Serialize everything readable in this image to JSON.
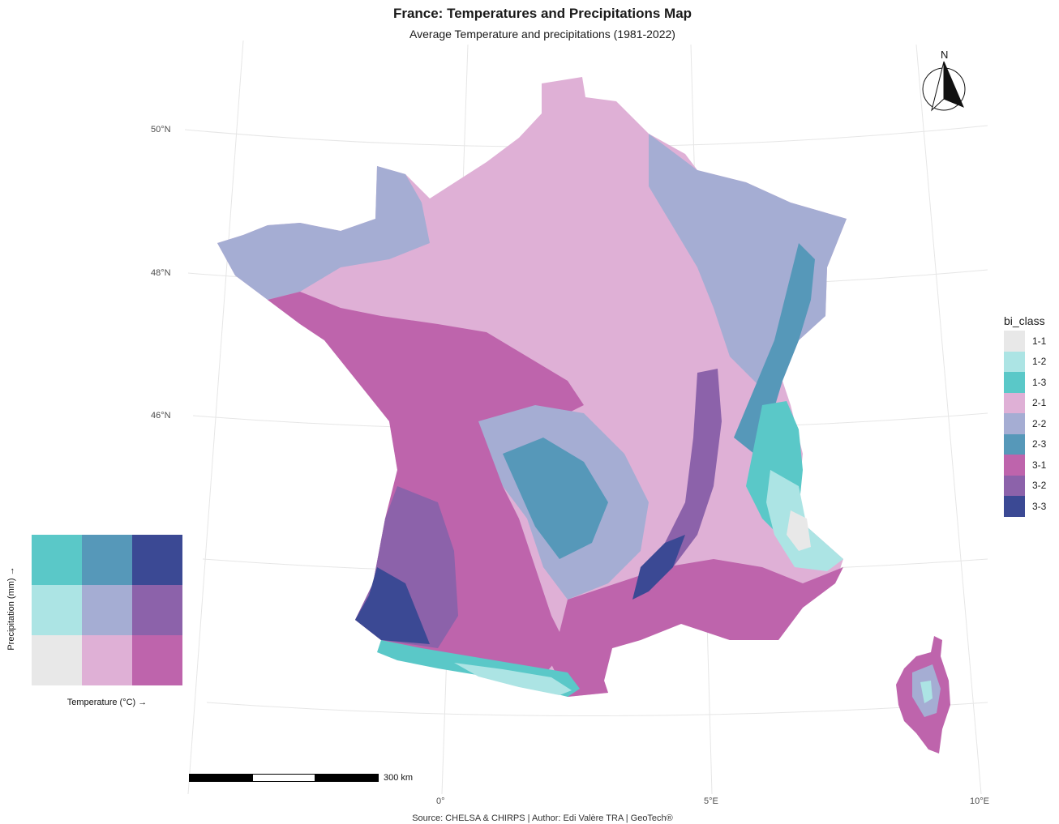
{
  "header": {
    "title": "France: Temperatures and Precipitations Map",
    "subtitle": "Average Temperature and precipitations (1981-2022)"
  },
  "axes": {
    "lat_labels": [
      "50°N",
      "48°N",
      "46°N"
    ],
    "lon_labels": [
      "0°",
      "5°E",
      "10°E"
    ]
  },
  "legend": {
    "title": "bi_class",
    "items": [
      {
        "label": "1-1",
        "color": "#e8e8e8"
      },
      {
        "label": "1-2",
        "color": "#ace4e4"
      },
      {
        "label": "1-3",
        "color": "#5ac8c8"
      },
      {
        "label": "2-1",
        "color": "#dfb0d6"
      },
      {
        "label": "2-2",
        "color": "#a5add3"
      },
      {
        "label": "2-3",
        "color": "#5698b9"
      },
      {
        "label": "3-1",
        "color": "#be64ac"
      },
      {
        "label": "3-2",
        "color": "#8c62aa"
      },
      {
        "label": "3-3",
        "color": "#3b4994"
      }
    ]
  },
  "bivariate_legend": {
    "x_label": "Temperature (°C) →",
    "y_label": "Precipitation (mm) →",
    "grid": [
      [
        "#5ac8c8",
        "#5698b9",
        "#3b4994"
      ],
      [
        "#ace4e4",
        "#a5add3",
        "#8c62aa"
      ],
      [
        "#e8e8e8",
        "#dfb0d6",
        "#be64ac"
      ]
    ]
  },
  "scale_bar": {
    "label": "300 km"
  },
  "north_arrow": {
    "label": "N"
  },
  "source": "Source: CHELSA & CHIRPS | Author: Edi Valère TRA | GeoTech®"
}
